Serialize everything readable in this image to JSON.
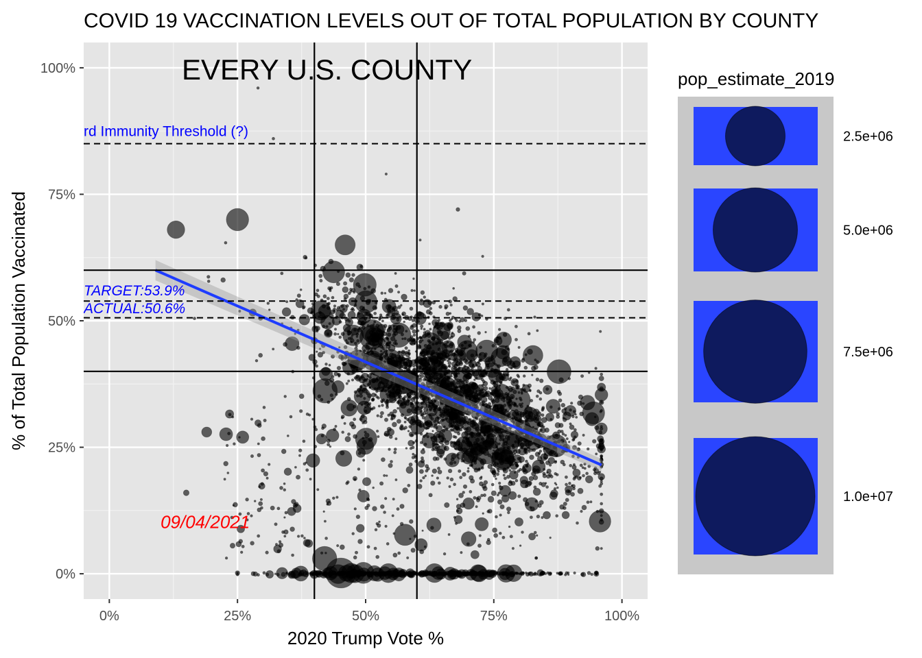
{
  "chart_data": {
    "type": "scatter",
    "title": "COVID 19 VACCINATION LEVELS OUT OF TOTAL POPULATION BY COUNTY",
    "subtitle": "EVERY U.S. COUNTY",
    "xlabel": "2020 Trump Vote %",
    "ylabel": "% of Total Population Vaccinated",
    "xlim": [
      -0.05,
      1.05
    ],
    "ylim": [
      -0.05,
      1.05
    ],
    "x_ticks": [
      {
        "value": 0,
        "label": "0%"
      },
      {
        "value": 0.25,
        "label": "25%"
      },
      {
        "value": 0.5,
        "label": "50%"
      },
      {
        "value": 0.75,
        "label": "75%"
      },
      {
        "value": 1.0,
        "label": "100%"
      }
    ],
    "y_ticks": [
      {
        "value": 0,
        "label": "0%"
      },
      {
        "value": 0.25,
        "label": "25%"
      },
      {
        "value": 0.5,
        "label": "50%"
      },
      {
        "value": 0.75,
        "label": "75%"
      },
      {
        "value": 1.0,
        "label": "100%"
      }
    ],
    "grid": true,
    "point_color": "#000000",
    "point_opacity": 0.6,
    "reference_lines": {
      "vertical_solid": [
        0.4,
        0.6
      ],
      "horizontal_solid": [
        0.4,
        0.6
      ],
      "horizontal_dashed": [
        {
          "y": 0.85,
          "x_start": -0.05
        },
        {
          "y": 0.539,
          "x_start": -0.05
        },
        {
          "y": 0.506,
          "x_start": -0.05
        }
      ]
    },
    "annotations": [
      {
        "name": "herd-immunity",
        "text": "rd Immunity Threshold (?)",
        "x": -0.05,
        "y": 0.865,
        "color": "#0000ff",
        "italic": false
      },
      {
        "name": "target",
        "text": "TARGET:53.9%",
        "x": -0.05,
        "y": 0.55,
        "color": "#0000ff",
        "italic": true
      },
      {
        "name": "actual",
        "text": "ACTUAL:50.6%",
        "x": -0.05,
        "y": 0.515,
        "color": "#0000ff",
        "italic": true
      },
      {
        "name": "date",
        "text": "09/04/2021",
        "x": 0.1,
        "y": 0.09,
        "color": "#ff0000",
        "italic": true
      }
    ],
    "trend_line": {
      "color": "#1e3cff",
      "x": [
        0.09,
        0.96
      ],
      "y": [
        0.6,
        0.215
      ]
    },
    "legend": {
      "title": "pop_estimate_2019",
      "position": "right",
      "fill_color": "#0e1a5e",
      "key_color": "#2a45ff",
      "panel_color": "#c8c8c8",
      "entries": [
        {
          "label": "2.5e+06",
          "value": 2500000
        },
        {
          "label": "5.0e+06",
          "value": 5000000
        },
        {
          "label": "7.5e+06",
          "value": 7500000
        },
        {
          "label": "1.0e+07",
          "value": 10000000
        }
      ]
    },
    "highlight_points": [
      {
        "x": 0.29,
        "y": 0.96,
        "pop": 12000
      },
      {
        "x": 0.32,
        "y": 0.86,
        "pop": 15000
      },
      {
        "x": 0.54,
        "y": 0.79,
        "pop": 8000
      },
      {
        "x": 0.68,
        "y": 0.72,
        "pop": 40000
      },
      {
        "x": 0.15,
        "y": 0.16,
        "pop": 120000
      },
      {
        "x": 0.13,
        "y": 0.68,
        "pop": 1500000
      },
      {
        "x": 0.25,
        "y": 0.7,
        "pop": 2500000
      },
      {
        "x": 0.46,
        "y": 0.65,
        "pop": 2000000
      },
      {
        "x": 0.26,
        "y": 0.27,
        "pop": 700000
      },
      {
        "x": 0.19,
        "y": 0.28,
        "pop": 450000
      },
      {
        "x": 0.42,
        "y": 0.03,
        "pop": 3000000
      }
    ]
  }
}
